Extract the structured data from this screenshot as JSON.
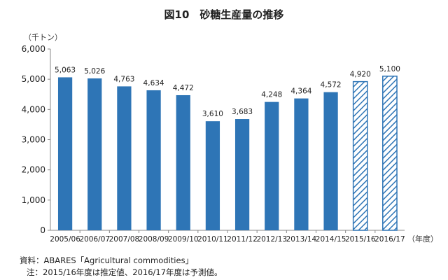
{
  "chart_data": {
    "type": "bar",
    "title": "図10　砂糖生産量の推移",
    "ylabel": "（千トン）",
    "xlabel": "（年度）",
    "categories": [
      "2005/06",
      "2006/07",
      "2007/08",
      "2008/09",
      "2009/10",
      "2010/11",
      "2011/12",
      "2012/13",
      "2013/14",
      "2014/15",
      "2015/16",
      "2016/17"
    ],
    "values": [
      5063,
      5026,
      4763,
      4634,
      4472,
      3610,
      3683,
      4248,
      4364,
      4572,
      4920,
      5100
    ],
    "value_labels": [
      "5,063",
      "5,026",
      "4,763",
      "4,634",
      "4,472",
      "3,610",
      "3,683",
      "4,248",
      "4,364",
      "4,572",
      "4,920",
      "5,100"
    ],
    "estimate_flags": [
      false,
      false,
      false,
      false,
      false,
      false,
      false,
      false,
      false,
      false,
      true,
      true
    ],
    "ylim": [
      0,
      6000
    ],
    "yticks": [
      "0",
      "1,000",
      "2,000",
      "3,000",
      "4,000",
      "5,000",
      "6,000"
    ],
    "grid": false,
    "colors": {
      "bar": "#2e75b6",
      "hatch": "#2e75b6",
      "axis": "#888888"
    }
  },
  "notes": {
    "source": "資料：ABARES「Agricultural commodities」",
    "note": "注：2015/16年度は推定値、2016/17年度は予測値。"
  }
}
